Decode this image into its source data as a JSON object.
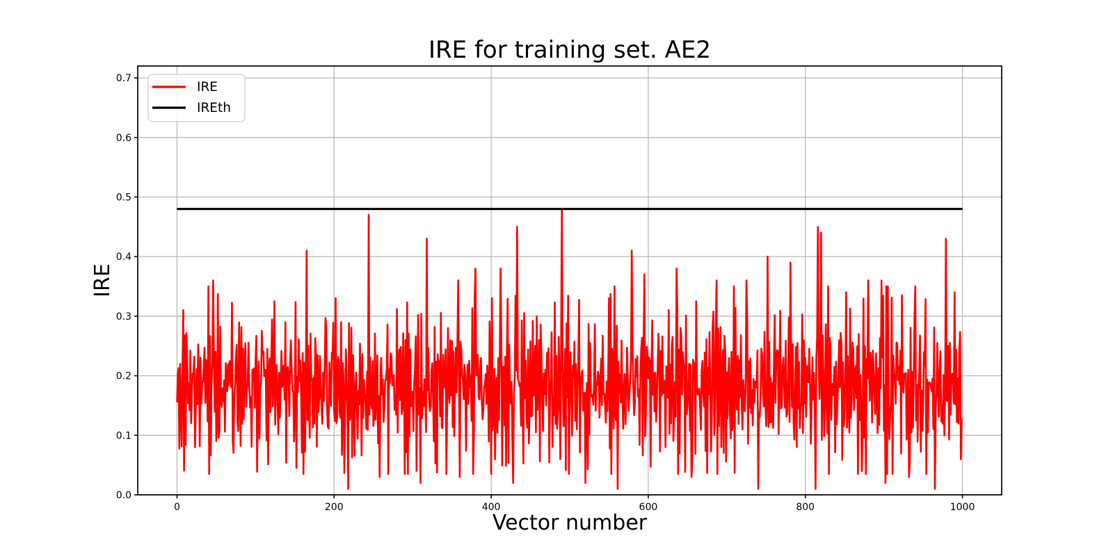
{
  "figure": {
    "background_color": "#ffffff"
  },
  "chart_data": {
    "type": "line",
    "title": "IRE for training set. AE2",
    "xlabel": "Vector number",
    "ylabel": "IRE",
    "xlim": [
      -50,
      1050
    ],
    "ylim": [
      0,
      0.72
    ],
    "xticks": [
      0,
      200,
      400,
      600,
      800,
      1000
    ],
    "xtick_labels": [
      "0",
      "200",
      "400",
      "600",
      "800",
      "1000"
    ],
    "yticks": [
      0,
      0.1,
      0.2,
      0.3,
      0.4,
      0.5,
      0.6,
      0.7
    ],
    "ytick_labels": [
      "0.0",
      "0.1",
      "0.2",
      "0.3",
      "0.4",
      "0.5",
      "0.6",
      "0.7"
    ],
    "grid": true,
    "grid_color": "#b9b9b9",
    "spine_color": "#000000",
    "legend": {
      "position": "upper left",
      "entries": [
        {
          "label": "IRE",
          "color": "#ff0000"
        },
        {
          "label": "IREth",
          "color": "#000000"
        }
      ]
    },
    "series": [
      {
        "name": "IRE",
        "color": "#ff0000",
        "style": "noisy-line",
        "line_width": 2.6,
        "n_points": 1000,
        "x_start": 0,
        "noise": {
          "seed": 1337,
          "mean": 0.185,
          "std": 0.065,
          "min": 0.035,
          "max": 0.35,
          "anticorrelation": 0.5
        },
        "peaks": [
          [
            8,
            0.31
          ],
          [
            46,
            0.36
          ],
          [
            165,
            0.41
          ],
          [
            244,
            0.47
          ],
          [
            318,
            0.43
          ],
          [
            358,
            0.36
          ],
          [
            380,
            0.38
          ],
          [
            412,
            0.38
          ],
          [
            433,
            0.45
          ],
          [
            490,
            0.48
          ],
          [
            550,
            0.33
          ],
          [
            579,
            0.41
          ],
          [
            595,
            0.37
          ],
          [
            636,
            0.38
          ],
          [
            687,
            0.36
          ],
          [
            725,
            0.36
          ],
          [
            752,
            0.4
          ],
          [
            781,
            0.39
          ],
          [
            816,
            0.45
          ],
          [
            820,
            0.44
          ],
          [
            852,
            0.34
          ],
          [
            880,
            0.36
          ],
          [
            897,
            0.36
          ],
          [
            940,
            0.35
          ],
          [
            979,
            0.43
          ],
          [
            990,
            0.34
          ]
        ],
        "dips": [
          [
            218,
            0.01
          ],
          [
            258,
            0.03
          ],
          [
            310,
            0.02
          ],
          [
            360,
            0.03
          ],
          [
            428,
            0.02
          ],
          [
            520,
            0.02
          ],
          [
            561,
            0.01
          ],
          [
            655,
            0.03
          ],
          [
            740,
            0.01
          ],
          [
            813,
            0.01
          ],
          [
            872,
            0.04
          ],
          [
            902,
            0.02
          ],
          [
            932,
            0.03
          ],
          [
            965,
            0.01
          ],
          [
            998,
            0.06
          ]
        ]
      },
      {
        "name": "IREth",
        "color": "#000000",
        "style": "constant-line",
        "line_width": 3.2,
        "value": 0.48,
        "x_range": [
          0,
          1000
        ]
      }
    ]
  }
}
